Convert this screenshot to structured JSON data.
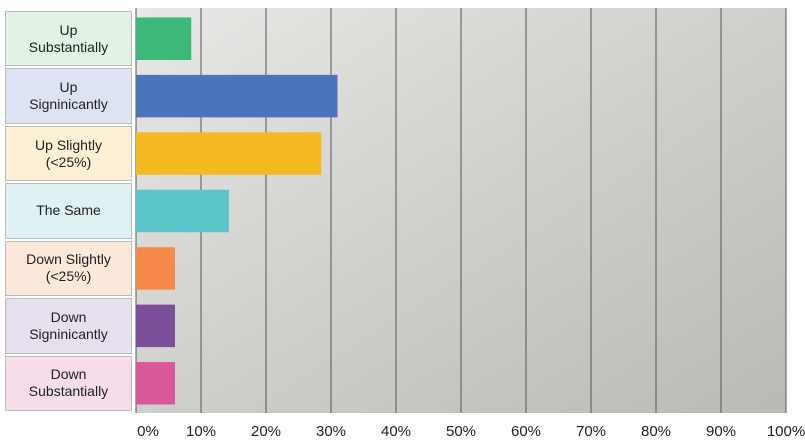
{
  "chart_data": {
    "type": "barh",
    "categories": [
      "Up\nSubstantially",
      "Up\nSigninicantly",
      "Up Slightly\n(<25%)",
      "The Same",
      "Down Slightly\n(<25%)",
      "Down\nSigninicantly",
      "Down\nSubstantially"
    ],
    "values": [
      8.5,
      31,
      28.5,
      14.3,
      6,
      6,
      6
    ],
    "colors": [
      "#3cb878",
      "#4a74bb",
      "#f5b921",
      "#5cc5cc",
      "#f7894a",
      "#7b4f9a",
      "#d9589a"
    ],
    "label_colors": [
      "#e2f3e6",
      "#dde3f2",
      "#fdf0d5",
      "#dff1f2",
      "#fde8dc",
      "#e6e0ee",
      "#f6dde9"
    ],
    "xlim": [
      0,
      100
    ],
    "xticks": [
      {
        "value": 0,
        "label": "0%"
      },
      {
        "value": 10,
        "label": "10%"
      },
      {
        "value": 20,
        "label": "20%"
      },
      {
        "value": 30,
        "label": "30%"
      },
      {
        "value": 40,
        "label": "40%"
      },
      {
        "value": 50,
        "label": "50%"
      },
      {
        "value": 60,
        "label": "60%"
      },
      {
        "value": 70,
        "label": "70%"
      },
      {
        "value": 80,
        "label": "80%"
      },
      {
        "value": 90,
        "label": "90%"
      },
      {
        "value": 100,
        "label": "100%"
      }
    ],
    "grid": true
  }
}
